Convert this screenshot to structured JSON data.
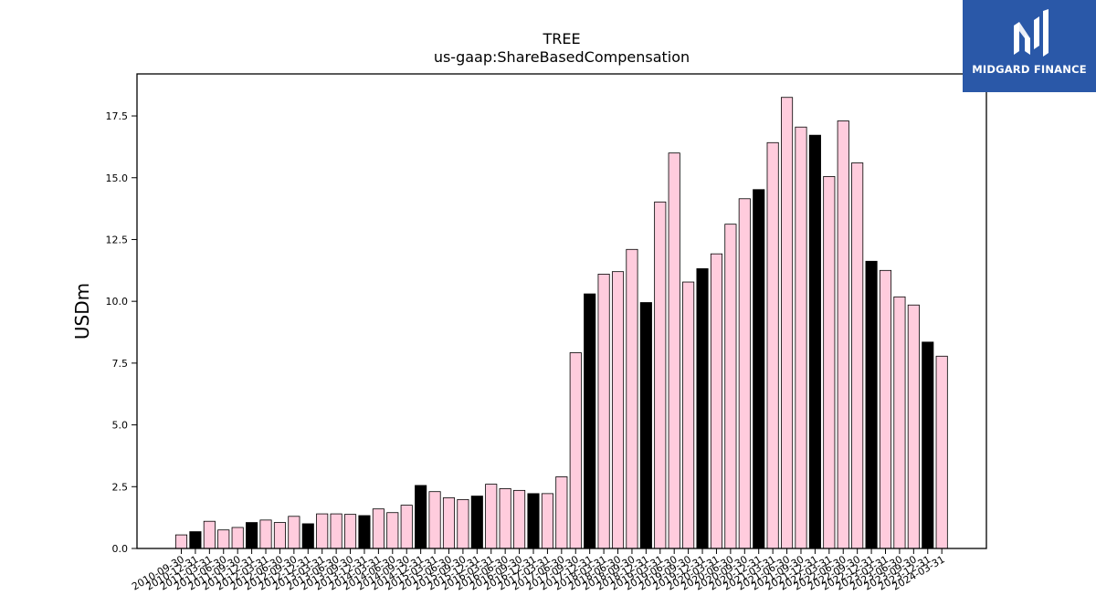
{
  "brand": {
    "name": "MIDGARD FINANCE",
    "logo_icon": "midgard-m-logo-icon",
    "background": "#2a58a8"
  },
  "chart_data": {
    "type": "bar",
    "title": "TREE",
    "subtitle": "us-gaap:ShareBasedCompensation",
    "xlabel": "",
    "ylabel": "USDm",
    "ylim": [
      0,
      19.2
    ],
    "yticks": [
      "0.0",
      "2.5",
      "5.0",
      "7.5",
      "10.0",
      "12.5",
      "15.0",
      "17.5"
    ],
    "grid": false,
    "colors": {
      "quarter": "#ffccdd",
      "annual": "#000000",
      "edge": "#000000"
    },
    "categories": [
      "2010-09-30",
      "2010-12-31",
      "2011-03-31",
      "2011-06-30",
      "2011-09-30",
      "2011-12-31",
      "2012-03-31",
      "2012-06-30",
      "2012-09-30",
      "2012-12-31",
      "2013-03-31",
      "2013-06-30",
      "2013-09-30",
      "2013-12-31",
      "2014-03-31",
      "2014-06-30",
      "2014-09-30",
      "2014-12-31",
      "2015-03-31",
      "2015-06-30",
      "2015-09-30",
      "2015-12-31",
      "2016-03-31",
      "2016-06-30",
      "2016-09-30",
      "2016-12-31",
      "2017-03-31",
      "2017-06-30",
      "2017-09-30",
      "2017-12-31",
      "2018-03-31",
      "2018-06-30",
      "2018-09-30",
      "2018-12-31",
      "2019-03-31",
      "2019-06-30",
      "2019-09-30",
      "2019-12-31",
      "2020-03-31",
      "2020-06-30",
      "2020-09-30",
      "2020-12-31",
      "2021-03-31",
      "2021-06-30",
      "2021-09-30",
      "2021-12-31",
      "2022-03-31",
      "2022-06-30",
      "2022-09-30",
      "2022-12-31",
      "2023-03-31",
      "2023-06-30",
      "2023-09-30",
      "2023-12-31",
      "2024-03-31"
    ],
    "values": [
      0.55,
      0.68,
      1.1,
      0.75,
      0.85,
      1.05,
      1.15,
      1.05,
      1.3,
      1.0,
      1.4,
      1.4,
      1.38,
      1.33,
      1.6,
      1.45,
      1.75,
      2.55,
      2.3,
      2.05,
      1.98,
      2.12,
      2.6,
      2.42,
      2.35,
      2.22,
      2.22,
      2.9,
      7.92,
      10.3,
      11.1,
      11.2,
      12.1,
      9.95,
      14.02,
      16.0,
      10.78,
      11.32,
      11.92,
      13.12,
      14.15,
      14.52,
      16.42,
      18.25,
      17.05,
      16.72,
      15.05,
      17.3,
      15.6,
      11.62,
      11.25,
      10.18,
      9.85,
      8.35,
      7.78
    ],
    "annual_flags": [
      0,
      1,
      0,
      0,
      0,
      1,
      0,
      0,
      0,
      1,
      0,
      0,
      0,
      1,
      0,
      0,
      0,
      1,
      0,
      0,
      0,
      1,
      0,
      0,
      0,
      1,
      0,
      0,
      0,
      1,
      0,
      0,
      0,
      1,
      0,
      0,
      0,
      1,
      0,
      0,
      0,
      1,
      0,
      0,
      0,
      1,
      0,
      0,
      0,
      1,
      0,
      0,
      0,
      1,
      0
    ]
  }
}
